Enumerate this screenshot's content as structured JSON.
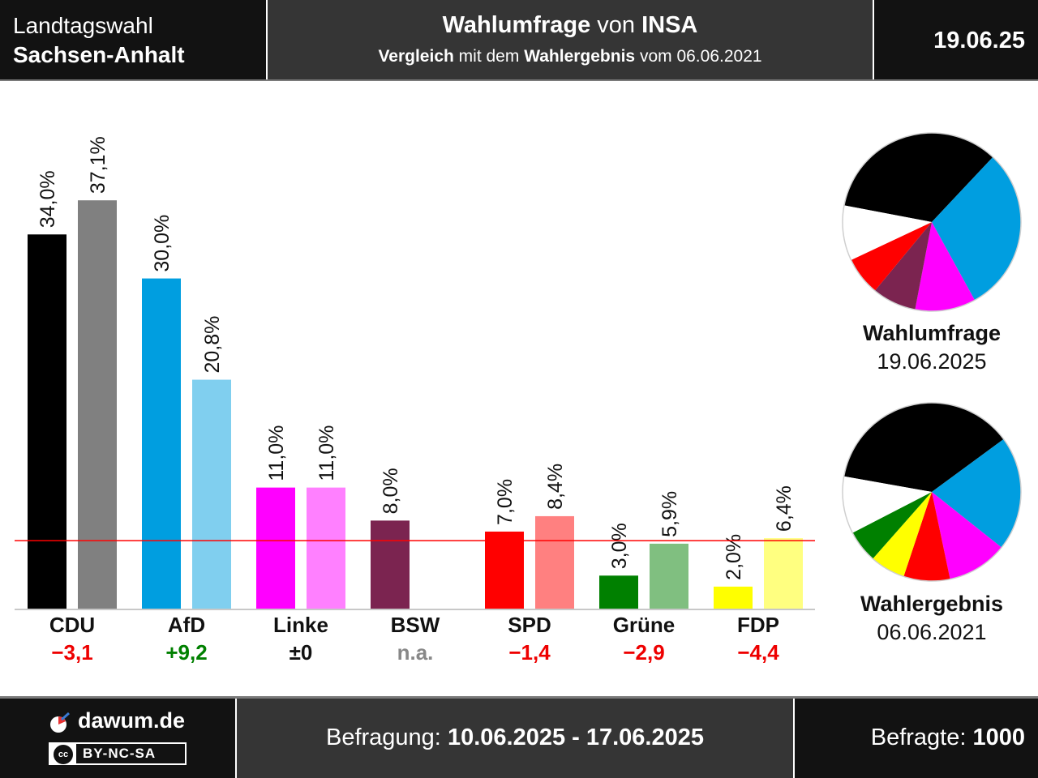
{
  "header": {
    "left_line1": "Landtagswahl",
    "left_line2": "Sachsen-Anhalt",
    "title_bold1": "Wahlumfrage",
    "title_mid": " von ",
    "title_bold2": "INSA",
    "sub_bold1": "Vergleich",
    "sub_mid1": " mit dem ",
    "sub_bold2": "Wahlergebnis",
    "sub_mid2": " vom 06.06.2021",
    "date": "19.06.25"
  },
  "chart_data": {
    "type": "bar",
    "categories": [
      "CDU",
      "AfD",
      "Linke",
      "BSW",
      "SPD",
      "Grüne",
      "FDP"
    ],
    "series": [
      {
        "name": "Wahlumfrage 19.06.2025",
        "values": [
          34.0,
          30.0,
          11.0,
          8.0,
          7.0,
          3.0,
          2.0
        ]
      },
      {
        "name": "Wahlergebnis 06.06.2021",
        "values": [
          37.1,
          20.8,
          11.0,
          null,
          8.4,
          5.9,
          6.4
        ]
      }
    ],
    "value_labels_survey": [
      "34,0%",
      "30,0%",
      "11,0%",
      "8,0%",
      "7,0%",
      "3,0%",
      "2,0%"
    ],
    "value_labels_result": [
      "37,1%",
      "20,8%",
      "11,0%",
      "",
      "8,4%",
      "5,9%",
      "6,4%"
    ],
    "changes": [
      "−3,1",
      "+9,2",
      "±0",
      "n.a.",
      "−1,4",
      "−2,9",
      "−4,4"
    ],
    "change_colors": [
      "#ee0000",
      "#008000",
      "#111111",
      "#888888",
      "#ee0000",
      "#ee0000",
      "#ee0000"
    ],
    "colors_survey": [
      "#000000",
      "#009ee0",
      "#ff00ff",
      "#7b2450",
      "#ff0000",
      "#008000",
      "#ffff00"
    ],
    "colors_result": [
      "#808080",
      "#80cfef",
      "#ff80ff",
      "#bd91a7",
      "#ff8080",
      "#80bf80",
      "#ffff80"
    ],
    "threshold": 5,
    "ylim": [
      0,
      40
    ]
  },
  "pies": [
    {
      "title": "Wahlumfrage",
      "date": "19.06.2025",
      "slices": [
        {
          "party": "CDU",
          "value": 34.0,
          "color": "#000000"
        },
        {
          "party": "AfD",
          "value": 30.0,
          "color": "#009ee0"
        },
        {
          "party": "Linke",
          "value": 11.0,
          "color": "#ff00ff"
        },
        {
          "party": "BSW",
          "value": 8.0,
          "color": "#7b2450"
        },
        {
          "party": "SPD",
          "value": 7.0,
          "color": "#ff0000"
        }
      ]
    },
    {
      "title": "Wahlergebnis",
      "date": "06.06.2021",
      "slices": [
        {
          "party": "CDU",
          "value": 37.1,
          "color": "#000000"
        },
        {
          "party": "AfD",
          "value": 20.8,
          "color": "#009ee0"
        },
        {
          "party": "Linke",
          "value": 11.0,
          "color": "#ff00ff"
        },
        {
          "party": "SPD",
          "value": 8.4,
          "color": "#ff0000"
        },
        {
          "party": "FDP",
          "value": 6.4,
          "color": "#ffff00"
        },
        {
          "party": "Grüne",
          "value": 5.9,
          "color": "#008000"
        }
      ]
    }
  ],
  "footer": {
    "brand": "dawum.de",
    "license": "BY-NC-SA",
    "period_label": "Befragung: ",
    "period_value": "10.06.2025 - 17.06.2025",
    "resp_label": "Befragte: ",
    "resp_value": "1000"
  }
}
